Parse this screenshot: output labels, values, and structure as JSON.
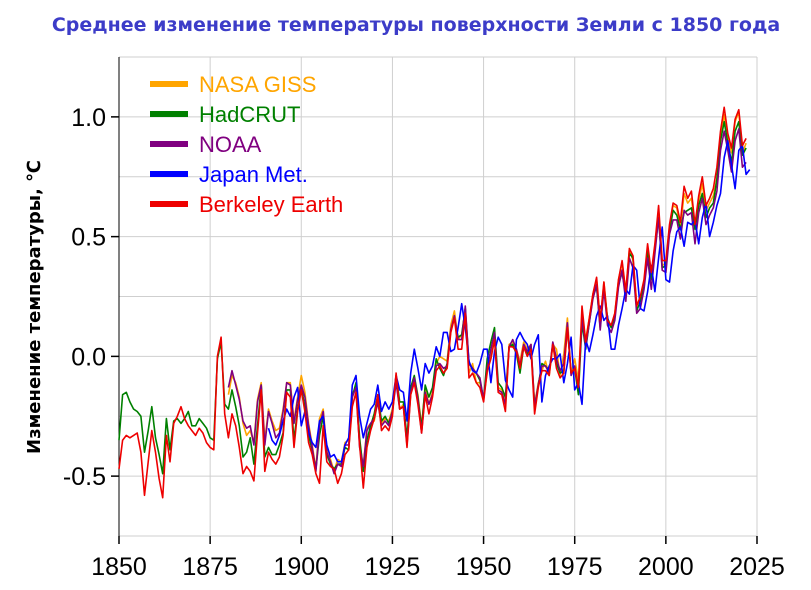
{
  "chart_data": {
    "type": "line",
    "title": "Среднее изменение температуры поверхности Земли с 1850 года",
    "xlabel": "",
    "ylabel": "Изменение температуры, ℃",
    "xlim": [
      1850,
      2025
    ],
    "ylim": [
      -0.75,
      1.25
    ],
    "x_ticks": [
      1850,
      1875,
      1900,
      1925,
      1950,
      1975,
      2000,
      2025
    ],
    "y_ticks": [
      -0.5,
      0.0,
      0.5,
      1.0
    ],
    "y_tick_labels": [
      "-0.5",
      "0.0",
      "0.5",
      "1.0"
    ],
    "grid": true,
    "legend_position": "top-left",
    "series": [
      {
        "name": "NASA GISS",
        "color": "#ffa500",
        "x_start": 1880,
        "values": [
          -0.16,
          -0.08,
          -0.11,
          -0.17,
          -0.28,
          -0.33,
          -0.31,
          -0.36,
          -0.18,
          -0.11,
          -0.35,
          -0.22,
          -0.27,
          -0.31,
          -0.3,
          -0.22,
          -0.11,
          -0.11,
          -0.27,
          -0.17,
          -0.08,
          -0.15,
          -0.28,
          -0.37,
          -0.47,
          -0.26,
          -0.22,
          -0.39,
          -0.43,
          -0.48,
          -0.43,
          -0.44,
          -0.36,
          -0.35,
          -0.15,
          -0.14,
          -0.36,
          -0.46,
          -0.3,
          -0.28,
          -0.27,
          -0.19,
          -0.28,
          -0.26,
          -0.27,
          -0.22,
          -0.1,
          -0.22,
          -0.2,
          -0.36,
          -0.16,
          -0.09,
          -0.16,
          -0.29,
          -0.13,
          -0.2,
          -0.15,
          -0.03,
          -0.0,
          -0.01,
          -0.02,
          0.13,
          0.19,
          0.07,
          0.09,
          0.2,
          -0.07,
          -0.03,
          -0.11,
          -0.11,
          -0.17,
          -0.07,
          0.01,
          0.08,
          -0.13,
          -0.14,
          -0.19,
          0.05,
          0.06,
          0.03,
          -0.02,
          0.06,
          0.03,
          0.05,
          -0.2,
          -0.11,
          -0.06,
          -0.02,
          -0.08,
          0.05,
          0.03,
          -0.08,
          0.01,
          0.16,
          -0.07,
          -0.01,
          -0.1,
          0.18,
          0.07,
          0.16,
          0.26,
          0.32,
          0.14,
          0.31,
          0.16,
          0.12,
          0.18,
          0.32,
          0.39,
          0.27,
          0.45,
          0.4,
          0.22,
          0.23,
          0.31,
          0.44,
          0.33,
          0.46,
          0.61,
          0.38,
          0.39,
          0.54,
          0.63,
          0.62,
          0.53,
          0.68,
          0.64,
          0.66,
          0.54,
          0.65,
          0.72,
          0.61,
          0.64,
          0.67,
          0.74,
          0.9,
          1.01,
          0.92,
          0.85,
          0.98,
          1.02,
          0.85,
          0.89
        ],
        "values_note": ""
      },
      {
        "name": "HadCRUT",
        "color": "#008000",
        "x_start": 1850,
        "values": [
          -0.35,
          -0.16,
          -0.15,
          -0.19,
          -0.22,
          -0.23,
          -0.25,
          -0.4,
          -0.31,
          -0.21,
          -0.34,
          -0.41,
          -0.49,
          -0.26,
          -0.39,
          -0.27,
          -0.26,
          -0.28,
          -0.26,
          -0.23,
          -0.29,
          -0.29,
          -0.26,
          -0.28,
          -0.3,
          -0.34,
          -0.35,
          -0.01,
          0.06,
          -0.2,
          -0.22,
          -0.14,
          -0.21,
          -0.29,
          -0.42,
          -0.4,
          -0.34,
          -0.45,
          -0.29,
          -0.12,
          -0.42,
          -0.38,
          -0.41,
          -0.41,
          -0.37,
          -0.32,
          -0.14,
          -0.14,
          -0.35,
          -0.22,
          -0.13,
          -0.21,
          -0.33,
          -0.39,
          -0.47,
          -0.33,
          -0.25,
          -0.41,
          -0.45,
          -0.47,
          -0.45,
          -0.45,
          -0.38,
          -0.39,
          -0.17,
          -0.11,
          -0.34,
          -0.48,
          -0.35,
          -0.29,
          -0.24,
          -0.16,
          -0.27,
          -0.25,
          -0.28,
          -0.23,
          -0.08,
          -0.19,
          -0.19,
          -0.34,
          -0.13,
          -0.08,
          -0.17,
          -0.3,
          -0.12,
          -0.17,
          -0.13,
          -0.01,
          -0.05,
          -0.08,
          -0.03,
          0.11,
          0.16,
          0.08,
          0.09,
          0.2,
          -0.03,
          -0.05,
          -0.07,
          -0.1,
          -0.18,
          -0.01,
          0.06,
          0.12,
          -0.11,
          -0.13,
          -0.17,
          0.04,
          0.05,
          0.01,
          -0.07,
          0.04,
          0.01,
          0.04,
          -0.21,
          -0.12,
          -0.03,
          -0.04,
          -0.06,
          0.05,
          -0.03,
          -0.07,
          -0.06,
          0.12,
          -0.07,
          -0.05,
          -0.16,
          0.14,
          0.03,
          0.14,
          0.25,
          0.29,
          0.12,
          0.29,
          0.16,
          0.12,
          0.17,
          0.3,
          0.35,
          0.26,
          0.43,
          0.41,
          0.19,
          0.23,
          0.29,
          0.44,
          0.32,
          0.45,
          0.58,
          0.37,
          0.38,
          0.52,
          0.61,
          0.59,
          0.53,
          0.6,
          0.61,
          0.62,
          0.53,
          0.63,
          0.68,
          0.58,
          0.62,
          0.64,
          0.74,
          0.9,
          0.98,
          0.89,
          0.81,
          0.94,
          0.98,
          0.84,
          0.87
        ]
      },
      {
        "name": "NOAA",
        "color": "#800080",
        "x_start": 1880,
        "values": [
          -0.13,
          -0.06,
          -0.12,
          -0.18,
          -0.27,
          -0.3,
          -0.29,
          -0.37,
          -0.19,
          -0.12,
          -0.37,
          -0.23,
          -0.28,
          -0.34,
          -0.32,
          -0.23,
          -0.11,
          -0.12,
          -0.28,
          -0.18,
          -0.12,
          -0.17,
          -0.29,
          -0.38,
          -0.48,
          -0.29,
          -0.23,
          -0.4,
          -0.44,
          -0.49,
          -0.45,
          -0.46,
          -0.37,
          -0.37,
          -0.17,
          -0.13,
          -0.38,
          -0.46,
          -0.31,
          -0.28,
          -0.26,
          -0.19,
          -0.29,
          -0.27,
          -0.29,
          -0.23,
          -0.11,
          -0.22,
          -0.21,
          -0.37,
          -0.15,
          -0.09,
          -0.18,
          -0.32,
          -0.15,
          -0.2,
          -0.16,
          -0.04,
          -0.03,
          -0.05,
          -0.04,
          0.11,
          0.17,
          0.07,
          0.07,
          0.21,
          -0.03,
          -0.05,
          -0.07,
          -0.09,
          -0.18,
          -0.05,
          0.03,
          0.1,
          -0.14,
          -0.15,
          -0.2,
          0.04,
          0.07,
          0.03,
          -0.04,
          0.05,
          0.02,
          0.05,
          -0.21,
          -0.12,
          -0.04,
          -0.04,
          -0.07,
          0.06,
          -0.01,
          -0.06,
          -0.03,
          0.14,
          -0.08,
          -0.04,
          -0.13,
          0.16,
          0.04,
          0.14,
          0.24,
          0.3,
          0.11,
          0.28,
          0.13,
          0.1,
          0.15,
          0.29,
          0.36,
          0.23,
          0.41,
          0.37,
          0.18,
          0.2,
          0.28,
          0.41,
          0.28,
          0.43,
          0.58,
          0.36,
          0.35,
          0.51,
          0.57,
          0.57,
          0.49,
          0.61,
          0.59,
          0.6,
          0.47,
          0.6,
          0.66,
          0.55,
          0.59,
          0.62,
          0.69,
          0.86,
          0.94,
          0.86,
          0.77,
          0.9,
          0.95,
          0.79,
          0.81
        ]
      },
      {
        "name": "Japan Met.",
        "color": "#0000ff",
        "x_start": 1891,
        "values": [
          -0.3,
          -0.35,
          -0.37,
          -0.33,
          -0.27,
          -0.22,
          -0.25,
          -0.17,
          -0.13,
          -0.29,
          -0.23,
          -0.32,
          -0.36,
          -0.38,
          -0.27,
          -0.25,
          -0.37,
          -0.42,
          -0.41,
          -0.44,
          -0.44,
          -0.37,
          -0.34,
          -0.12,
          -0.08,
          -0.25,
          -0.34,
          -0.28,
          -0.22,
          -0.2,
          -0.12,
          -0.23,
          -0.19,
          -0.22,
          -0.19,
          -0.08,
          -0.14,
          -0.15,
          -0.27,
          -0.07,
          0.03,
          -0.05,
          -0.14,
          -0.03,
          -0.07,
          -0.04,
          0.04,
          0.0,
          0.1,
          0.1,
          0.02,
          0.03,
          0.12,
          0.22,
          0.12,
          -0.02,
          -0.06,
          -0.07,
          -0.03,
          0.03,
          0.03,
          -0.11,
          0.02,
          0.08,
          0.05,
          -0.1,
          -0.14,
          -0.17,
          0.07,
          0.1,
          0.07,
          0.05,
          -0.01,
          0.05,
          0.09,
          -0.19,
          -0.08,
          -0.04,
          -0.01,
          -0.01,
          0.01,
          -0.11,
          -0.03,
          0.08,
          -0.14,
          -0.11,
          -0.2,
          0.07,
          0.02,
          0.09,
          0.17,
          0.21,
          0.15,
          0.17,
          0.03,
          0.03,
          0.13,
          0.2,
          0.28,
          0.26,
          0.38,
          0.36,
          0.2,
          0.19,
          0.27,
          0.38,
          0.27,
          0.41,
          0.54,
          0.32,
          0.31,
          0.44,
          0.52,
          0.54,
          0.46,
          0.56,
          0.55,
          0.57,
          0.47,
          0.58,
          0.64,
          0.5,
          0.56,
          0.63,
          0.68,
          0.83,
          0.9,
          0.8,
          0.7,
          0.86,
          0.88,
          0.76,
          0.78
        ]
      },
      {
        "name": "Berkeley Earth",
        "color": "#ee0000",
        "x_start": 1850,
        "values": [
          -0.47,
          -0.35,
          -0.33,
          -0.34,
          -0.33,
          -0.32,
          -0.4,
          -0.58,
          -0.44,
          -0.31,
          -0.4,
          -0.51,
          -0.59,
          -0.33,
          -0.44,
          -0.28,
          -0.25,
          -0.21,
          -0.26,
          -0.29,
          -0.31,
          -0.33,
          -0.3,
          -0.32,
          -0.36,
          -0.38,
          -0.39,
          0.0,
          0.08,
          -0.24,
          -0.34,
          -0.24,
          -0.29,
          -0.38,
          -0.49,
          -0.46,
          -0.48,
          -0.52,
          -0.32,
          -0.14,
          -0.48,
          -0.4,
          -0.43,
          -0.45,
          -0.42,
          -0.33,
          -0.15,
          -0.17,
          -0.38,
          -0.23,
          -0.14,
          -0.23,
          -0.36,
          -0.41,
          -0.49,
          -0.53,
          -0.29,
          -0.44,
          -0.46,
          -0.47,
          -0.53,
          -0.49,
          -0.41,
          -0.39,
          -0.21,
          -0.15,
          -0.37,
          -0.55,
          -0.38,
          -0.31,
          -0.26,
          -0.16,
          -0.31,
          -0.29,
          -0.31,
          -0.25,
          -0.07,
          -0.22,
          -0.21,
          -0.38,
          -0.16,
          -0.11,
          -0.2,
          -0.32,
          -0.16,
          -0.24,
          -0.17,
          -0.06,
          -0.04,
          -0.07,
          -0.05,
          0.1,
          0.16,
          0.03,
          0.03,
          0.18,
          -0.09,
          -0.07,
          -0.11,
          -0.13,
          -0.19,
          -0.06,
          -0.01,
          0.07,
          -0.15,
          -0.16,
          -0.23,
          0.04,
          0.04,
          0.02,
          -0.05,
          0.04,
          0.0,
          0.03,
          -0.24,
          -0.13,
          -0.06,
          -0.06,
          -0.08,
          0.05,
          -0.05,
          -0.09,
          -0.07,
          0.12,
          -0.07,
          -0.05,
          -0.13,
          0.21,
          0.06,
          0.16,
          0.26,
          0.33,
          0.15,
          0.31,
          0.15,
          0.13,
          0.18,
          0.32,
          0.4,
          0.27,
          0.45,
          0.42,
          0.21,
          0.25,
          0.32,
          0.47,
          0.35,
          0.47,
          0.63,
          0.4,
          0.4,
          0.55,
          0.64,
          0.63,
          0.56,
          0.71,
          0.66,
          0.69,
          0.55,
          0.67,
          0.75,
          0.63,
          0.66,
          0.7,
          0.79,
          0.94,
          1.04,
          0.93,
          0.87,
          0.99,
          1.03,
          0.88,
          0.91
        ]
      }
    ]
  }
}
